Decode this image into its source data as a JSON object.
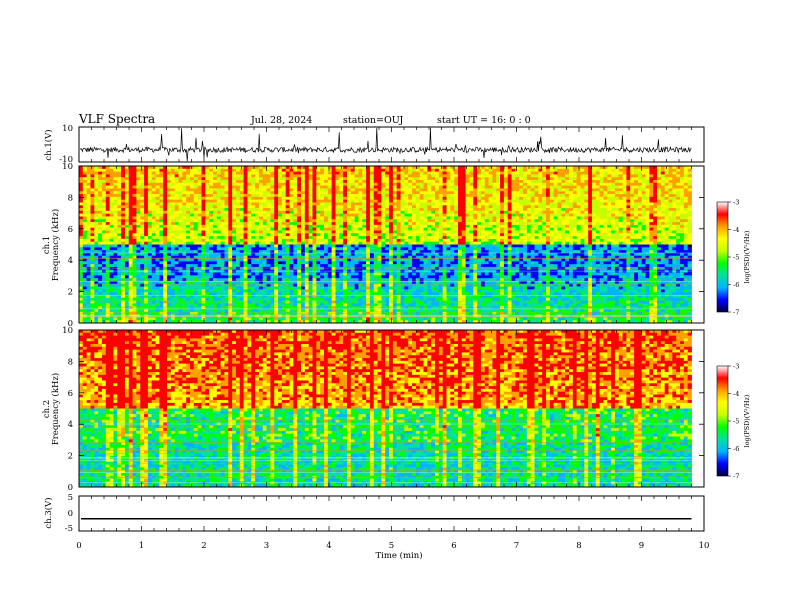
{
  "header": {
    "title": "VLF Spectra",
    "date": "Jul. 28, 2024",
    "station": "station=OUJ",
    "start": "start UT = 16: 0 : 0"
  },
  "colors": {
    "scale": [
      "#000040",
      "#0000ff",
      "#00b4ff",
      "#00e0a0",
      "#00ff00",
      "#c8ff00",
      "#ffff00",
      "#ffa000",
      "#ff0000",
      "#ffffff"
    ]
  },
  "chart_data": [
    {
      "type": "line",
      "name": "ch1-waveform",
      "ylabel": "ch.1(V)",
      "ylim": [
        -10,
        10
      ],
      "yticks": [
        "10",
        "-10"
      ],
      "x_range_min": [
        0,
        9.8
      ],
      "description_level": "noisy waveform centred near -3 V with frequent impulsive spikes"
    },
    {
      "type": "heatmap",
      "name": "ch1-spectrogram",
      "ylabel_1": "ch.1",
      "ylabel_2": "Frequency (kHz)",
      "ylim": [
        0,
        10
      ],
      "yticks": [
        "0",
        "2",
        "4",
        "6",
        "8",
        "10"
      ],
      "colorbar": {
        "label": "log(PSD)(V²/Hz)",
        "range": [
          -7,
          -3
        ],
        "ticks": [
          "-3",
          "-4",
          "-5",
          "-6",
          "-7"
        ]
      }
    },
    {
      "type": "heatmap",
      "name": "ch2-spectrogram",
      "ylabel_1": "ch.2",
      "ylabel_2": "Frequency (kHz)",
      "ylim": [
        0,
        10
      ],
      "yticks": [
        "0",
        "2",
        "4",
        "6",
        "8",
        "10"
      ],
      "colorbar": {
        "label": "log(PSD)(V²/Hz)",
        "range": [
          -7,
          -3
        ],
        "ticks": [
          "-3",
          "-4",
          "-5",
          "-6",
          "-7"
        ]
      }
    },
    {
      "type": "line",
      "name": "ch3-waveform",
      "ylabel": "ch.3(V)",
      "ylim": [
        -5,
        5
      ],
      "yticks": [
        "5",
        "0",
        "-5"
      ],
      "level": -1.5
    }
  ],
  "xaxis": {
    "label": "Time (min)",
    "range": [
      0,
      10
    ],
    "ticks": [
      "0",
      "1",
      "2",
      "3",
      "4",
      "5",
      "6",
      "7",
      "8",
      "9",
      "10"
    ]
  }
}
